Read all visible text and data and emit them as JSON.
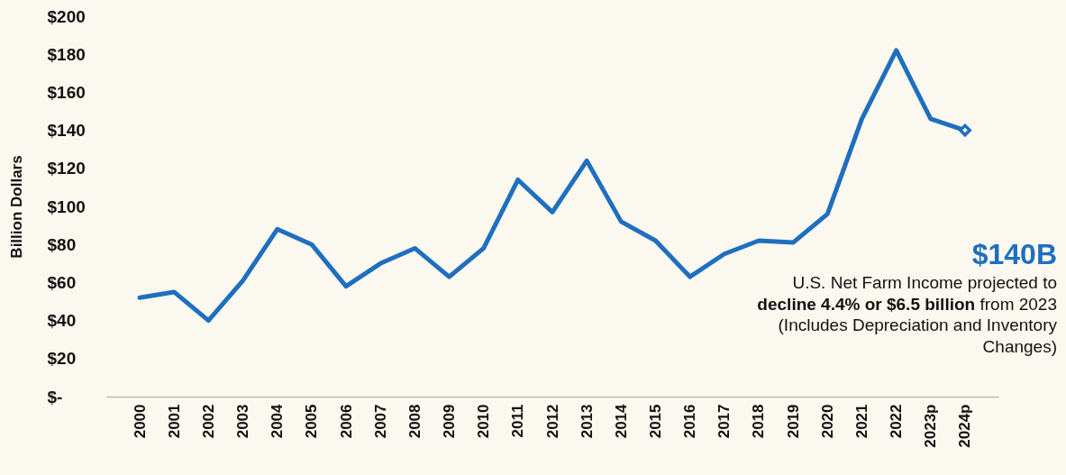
{
  "chart_data": {
    "type": "line",
    "ylabel": "Billion Dollars",
    "categories": [
      "2000",
      "2001",
      "2002",
      "2003",
      "2004",
      "2005",
      "2006",
      "2007",
      "2008",
      "2009",
      "2010",
      "2011",
      "2012",
      "2013",
      "2014",
      "2015",
      "2016",
      "2017",
      "2018",
      "2019",
      "2020",
      "2021",
      "2022",
      "2023p",
      "2024p"
    ],
    "series": [
      {
        "color": "#1f6fbf",
        "values": [
          52,
          55,
          40,
          61,
          88,
          80,
          58,
          70,
          78,
          63,
          78,
          114,
          97,
          124,
          92,
          82,
          63,
          75,
          82,
          81,
          96,
          146,
          182,
          146,
          140
        ]
      },
      {
        "type": "scatter",
        "marker": "diamond",
        "color": "#1f6fbf",
        "x": [
          "2024p"
        ],
        "values": [
          140
        ]
      }
    ],
    "ylim": [
      0,
      200
    ],
    "yticks": [
      {
        "value": 0,
        "label": "$-"
      },
      {
        "value": 20,
        "label": "$20"
      },
      {
        "value": 40,
        "label": "$40"
      },
      {
        "value": 60,
        "label": "$60"
      },
      {
        "value": 80,
        "label": "$80"
      },
      {
        "value": 100,
        "label": "$100"
      },
      {
        "value": 120,
        "label": "$120"
      },
      {
        "value": 140,
        "label": "$140"
      },
      {
        "value": 160,
        "label": "$160"
      },
      {
        "value": 180,
        "label": "$180"
      },
      {
        "value": 200,
        "label": "$200"
      }
    ],
    "grid": false,
    "line_style": "solid",
    "annotations": [
      "$140B",
      "U.S. Net Farm Income projected to",
      "decline 4.4% or $6.5 billion",
      "from 2023",
      "(Includes Depreciation and Inventory Changes)"
    ]
  }
}
